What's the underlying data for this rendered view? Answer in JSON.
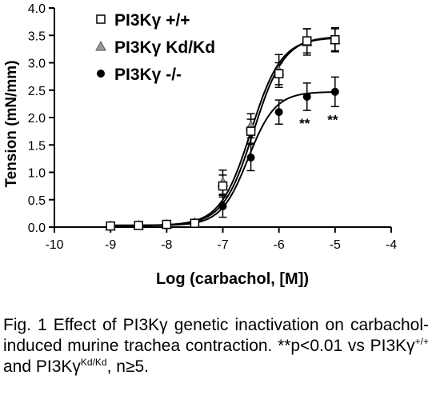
{
  "chart_data": {
    "type": "line",
    "xlabel": "Log (carbachol, [M])",
    "ylabel": "Tension (mN/mm)",
    "xlim": [
      -10,
      -4
    ],
    "ylim": [
      0,
      4.0
    ],
    "xticks": [
      -10,
      -9,
      -8,
      -7,
      -6,
      -5,
      -4
    ],
    "xtick_labels": [
      "-10",
      "-9",
      "-8",
      "-7",
      "-6",
      "-5",
      "-4"
    ],
    "yticks": [
      0,
      0.5,
      1.0,
      1.5,
      2.0,
      2.5,
      3.0,
      3.5,
      4.0
    ],
    "ytick_labels": [
      "0.0",
      "0.5",
      "1.0",
      "1.5",
      "2.0",
      "2.5",
      "3.0",
      "3.5",
      "4.0"
    ],
    "grid": false,
    "legend_position": "top-left",
    "x": [
      -9,
      -8.5,
      -8,
      -7.5,
      -7,
      -6.5,
      -6,
      -5.5,
      -5
    ],
    "series": [
      {
        "name": "PI3Kγ +/+",
        "marker": "open-square",
        "color": "#000000",
        "values": [
          0.02,
          0.03,
          0.05,
          0.07,
          0.75,
          1.75,
          2.8,
          3.4,
          3.42
        ],
        "errors": [
          0.02,
          0.03,
          0.04,
          0.05,
          0.2,
          0.22,
          0.2,
          0.22,
          0.2
        ],
        "fit": {
          "bottom": 0.03,
          "top": 3.48,
          "logEC50": -6.45,
          "hill": 1.6
        }
      },
      {
        "name": "PI3Kγ Kd/Kd",
        "marker": "filled-triangle",
        "color": "#999999",
        "values": [
          0.02,
          0.03,
          0.05,
          0.08,
          0.82,
          1.85,
          2.85,
          3.38,
          3.42
        ],
        "errors": [
          0.02,
          0.03,
          0.04,
          0.05,
          0.22,
          0.22,
          0.3,
          0.24,
          0.22
        ],
        "fit": {
          "bottom": 0.03,
          "top": 3.46,
          "logEC50": -6.5,
          "hill": 1.6
        }
      },
      {
        "name": "PI3Kγ -/-",
        "marker": "filled-circle",
        "color": "#000000",
        "values": [
          0.02,
          0.03,
          0.04,
          0.06,
          0.38,
          1.27,
          2.1,
          2.38,
          2.47
        ],
        "errors": [
          0.02,
          0.03,
          0.03,
          0.05,
          0.2,
          0.24,
          0.22,
          0.25,
          0.27
        ],
        "fit": {
          "bottom": 0.03,
          "top": 2.47,
          "logEC50": -6.55,
          "hill": 1.8
        }
      }
    ],
    "annotations": [
      {
        "text": "**",
        "x": -5.5
      },
      {
        "text": "**",
        "x": -5.0
      }
    ]
  },
  "caption": {
    "prefix": "Fig. 1 Effect of PI3Kγ genetic inactivation on carbachol-induced murine trachea contraction. **p<0.01 vs PI3Kγ",
    "sup1": "+/+",
    "middle": " and PI3Kγ",
    "sup2": "Kd/Kd",
    "suffix": ", n≥5."
  }
}
